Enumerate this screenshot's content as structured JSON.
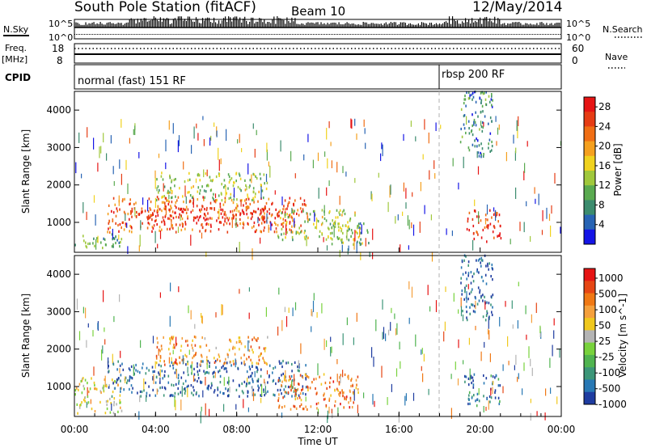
{
  "header": {
    "station": "South Pole Station (fitACF)",
    "beam": "Beam 10",
    "date": "12/May/2014"
  },
  "aux_panels": {
    "nsky_label": "N.Sky",
    "nsearch_label": "N.Search",
    "nsky_ticks": [
      "10^5",
      "10^0"
    ],
    "nsearch_ticks": [
      "10^5",
      "10^0"
    ],
    "freq_label_1": "Freq.",
    "freq_label_2": "[MHz]",
    "freq_ticks": [
      "18",
      "8"
    ],
    "nave_label": "Nave",
    "nave_ticks": [
      "60",
      "0"
    ],
    "cpid_label": "CPID",
    "cpid_segments": [
      {
        "label": "normal (fast) 151 RF",
        "start_hour": 0
      },
      {
        "label": "rbsp 200 RF",
        "start_hour": 18
      }
    ]
  },
  "chart_data": [
    {
      "type": "heatmap",
      "panel": "power",
      "ylabel": "Slant Range [km]",
      "xlabel": "",
      "ylim": [
        200,
        4500
      ],
      "xlim_hours": [
        0,
        24
      ],
      "y_ticks": [
        "1000",
        "2000",
        "3000",
        "4000"
      ],
      "colorbar": {
        "label": "Power [dB]",
        "ticks": [
          "4",
          "8",
          "12",
          "16",
          "20",
          "24",
          "28"
        ],
        "range": [
          0,
          30
        ],
        "colors": [
          "#1414e6",
          "#2864b4",
          "#3c8c6e",
          "#5aaa50",
          "#a0c83c",
          "#f0d21e",
          "#f5a01e",
          "#f06e14",
          "#e63c14",
          "#e61414"
        ]
      },
      "regions": [
        {
          "t0": 0.0,
          "t1": 2.3,
          "r0": 250,
          "r1": 650,
          "level": 0.35
        },
        {
          "t0": 1.6,
          "t1": 11.4,
          "r0": 700,
          "r1": 1650,
          "level": 0.8
        },
        {
          "t0": 3.0,
          "t1": 10.6,
          "r0": 900,
          "r1": 1350,
          "level": 0.95
        },
        {
          "t0": 4.0,
          "t1": 9.5,
          "r0": 1550,
          "r1": 2300,
          "level": 0.45
        },
        {
          "t0": 10.0,
          "t1": 14.0,
          "r0": 500,
          "r1": 1300,
          "level": 0.45
        },
        {
          "t0": 12.5,
          "t1": 14.5,
          "r0": 350,
          "r1": 950,
          "level": 0.35
        },
        {
          "t0": 19.2,
          "t1": 21.0,
          "r0": 450,
          "r1": 1300,
          "level": 0.9
        },
        {
          "t0": 19.0,
          "t1": 20.6,
          "r0": 2700,
          "r1": 4500,
          "level": 0.25
        }
      ]
    },
    {
      "type": "heatmap",
      "panel": "velocity",
      "ylabel": "Slant Range [km]",
      "xlabel": "Time UT",
      "ylim": [
        200,
        4500
      ],
      "xlim_hours": [
        0,
        24
      ],
      "x_ticks": [
        "00:00",
        "04:00",
        "08:00",
        "12:00",
        "16:00",
        "20:00",
        "00:00"
      ],
      "y_ticks": [
        "1000",
        "2000",
        "3000",
        "4000"
      ],
      "colorbar": {
        "label": "Velocity [m s^-1]",
        "ticks": [
          "1000",
          "500",
          "100",
          "50",
          "25",
          "-25",
          "-100",
          "-500",
          "-1000"
        ],
        "colors": [
          "#1e3ca0",
          "#2878b4",
          "#3c9678",
          "#50b450",
          "#78d23c",
          "#b4b4b4",
          "#f0c81e",
          "#f5a03c",
          "#f07814",
          "#e64614",
          "#e61414"
        ]
      },
      "regions": [
        {
          "t0": 0.0,
          "t1": 2.3,
          "r0": 250,
          "r1": 1200,
          "level": 0.55
        },
        {
          "t0": 1.6,
          "t1": 11.4,
          "r0": 700,
          "r1": 1650,
          "level": 0.1
        },
        {
          "t0": 4.0,
          "t1": 9.5,
          "r0": 1550,
          "r1": 2300,
          "level": 0.7
        },
        {
          "t0": 10.0,
          "t1": 14.0,
          "r0": 350,
          "r1": 1300,
          "level": 0.75
        },
        {
          "t0": 19.2,
          "t1": 21.0,
          "r0": 450,
          "r1": 1300,
          "level": 0.15
        },
        {
          "t0": 19.0,
          "t1": 20.6,
          "r0": 2700,
          "r1": 4500,
          "level": 0.1
        }
      ]
    }
  ]
}
